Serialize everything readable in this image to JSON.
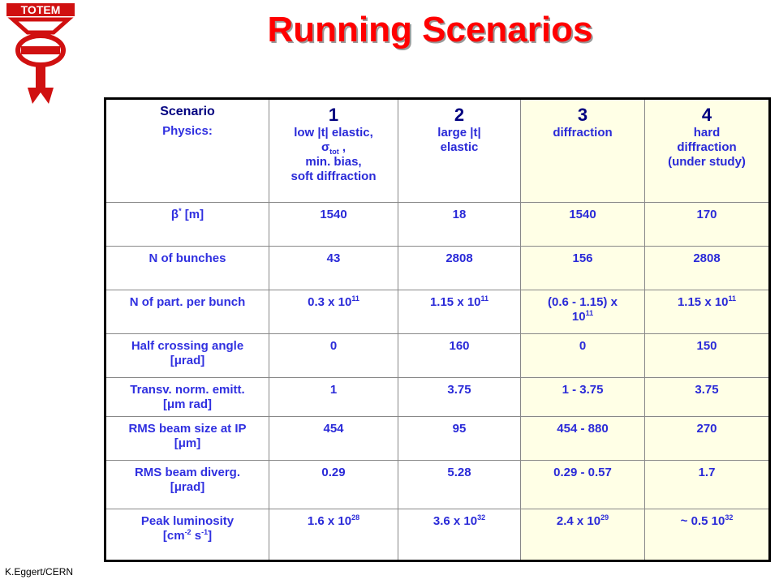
{
  "logo": {
    "text": "TOTEM"
  },
  "title": "Running Scenarios",
  "table": {
    "rows": [
      {
        "cells": [
          [
            [
              "Scenario"
            ],
            [
              "Physics:"
            ]
          ],
          [
            [
              "1"
            ],
            [
              "low |t| elastic,"
            ],
            [
              "σ",
              {
                "sub": "tot"
              },
              " ,"
            ],
            [
              "min. bias,"
            ],
            [
              "soft diffraction"
            ]
          ],
          [
            [
              "2"
            ],
            [
              "large |t|"
            ],
            [
              "elastic"
            ]
          ],
          [
            [
              "3"
            ],
            [
              "diffraction"
            ]
          ],
          [
            [
              "4"
            ],
            [
              "hard"
            ],
            [
              "diffraction"
            ],
            [
              "(under study)"
            ]
          ]
        ]
      },
      {
        "cells": [
          [
            [
              "β",
              {
                "sup": "*"
              },
              " [m]"
            ]
          ],
          [
            [
              "1540"
            ]
          ],
          [
            [
              "18"
            ]
          ],
          [
            [
              "1540"
            ]
          ],
          [
            [
              "170"
            ]
          ]
        ]
      },
      {
        "cells": [
          [
            [
              "N of bunches"
            ]
          ],
          [
            [
              "43"
            ]
          ],
          [
            [
              "2808"
            ]
          ],
          [
            [
              "156"
            ]
          ],
          [
            [
              "2808"
            ]
          ]
        ]
      },
      {
        "cells": [
          [
            [
              "N of part. per bunch"
            ]
          ],
          [
            [
              "0.3 x 10",
              {
                "sup": "11"
              }
            ]
          ],
          [
            [
              "1.15 x 10",
              {
                "sup": "11"
              }
            ]
          ],
          [
            [
              "(0.6 - 1.15) x"
            ],
            [
              "10",
              {
                "sup": "11"
              }
            ]
          ],
          [
            [
              "1.15 x 10",
              {
                "sup": "11"
              }
            ]
          ]
        ]
      },
      {
        "cells": [
          [
            [
              "Half crossing angle"
            ],
            [
              "[μrad]"
            ]
          ],
          [
            [
              "0"
            ]
          ],
          [
            [
              "160"
            ]
          ],
          [
            [
              "0"
            ]
          ],
          [
            [
              "150"
            ]
          ]
        ]
      },
      {
        "cells": [
          [
            [
              "Transv. norm. emitt."
            ],
            [
              "[μm rad]"
            ]
          ],
          [
            [
              "1"
            ]
          ],
          [
            [
              "3.75"
            ]
          ],
          [
            [
              "1 - 3.75"
            ]
          ],
          [
            [
              "3.75"
            ]
          ]
        ]
      },
      {
        "cells": [
          [
            [
              "RMS beam size at IP"
            ],
            [
              "[μm]"
            ]
          ],
          [
            [
              "454"
            ]
          ],
          [
            [
              "95"
            ]
          ],
          [
            [
              "454 - 880"
            ]
          ],
          [
            [
              "270"
            ]
          ]
        ]
      },
      {
        "cells": [
          [
            [
              "RMS beam diverg."
            ],
            [
              "[μrad]"
            ]
          ],
          [
            [
              "0.29"
            ]
          ],
          [
            [
              "5.28"
            ]
          ],
          [
            [
              "0.29 - 0.57"
            ]
          ],
          [
            [
              "1.7"
            ]
          ]
        ]
      },
      {
        "cells": [
          [
            [
              "Peak luminosity"
            ],
            [
              "[cm",
              {
                "sup": "-2"
              },
              " s",
              {
                "sup": "-1"
              },
              "]"
            ]
          ],
          [
            [
              "1.6 x 10",
              {
                "sup": "28"
              }
            ]
          ],
          [
            [
              "3.6 x 10",
              {
                "sup": "32"
              }
            ]
          ],
          [
            [
              "2.4 x 10",
              {
                "sup": "29"
              }
            ]
          ],
          [
            [
              "~ 0.5 10",
              {
                "sup": "32"
              }
            ]
          ]
        ]
      }
    ]
  },
  "footer": "K.Eggert/CERN"
}
